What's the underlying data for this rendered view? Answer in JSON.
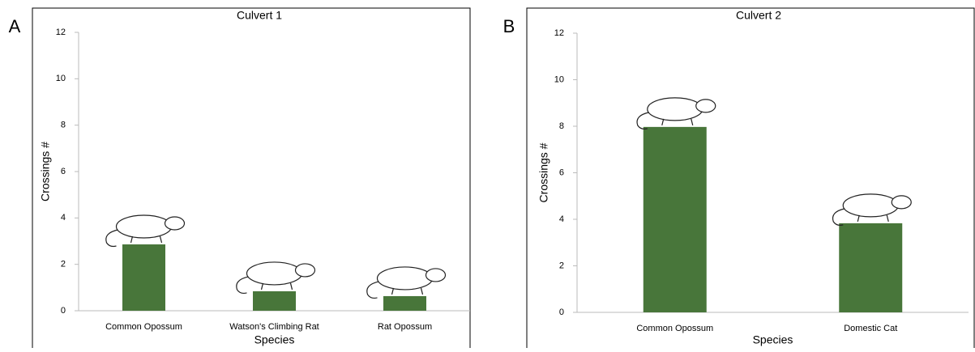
{
  "chart_data": [
    {
      "type": "bar",
      "panel_label": "A",
      "title": "Culvert 1",
      "x_label": "Species",
      "y_label": "Crossings #",
      "categories": [
        "Common Opossum",
        "Watson's Climbing Rat",
        "Rat Opossum"
      ],
      "values": [
        2.86,
        0.84,
        0.63
      ],
      "color": "#48763a",
      "ylim": [
        0,
        12
      ],
      "yticks": [
        0,
        2,
        4,
        6,
        8,
        10,
        12
      ]
    },
    {
      "type": "bar",
      "panel_label": "B",
      "title": "Culvert 2",
      "x_label": "Species",
      "y_label": "Crossings #",
      "categories": [
        "Common Opossum",
        "Domestic Cat"
      ],
      "values": [
        7.97,
        3.83
      ],
      "color": "#48763a",
      "ylim": [
        0,
        12
      ],
      "yticks": [
        0,
        2,
        4,
        6,
        8,
        10,
        12
      ]
    }
  ]
}
